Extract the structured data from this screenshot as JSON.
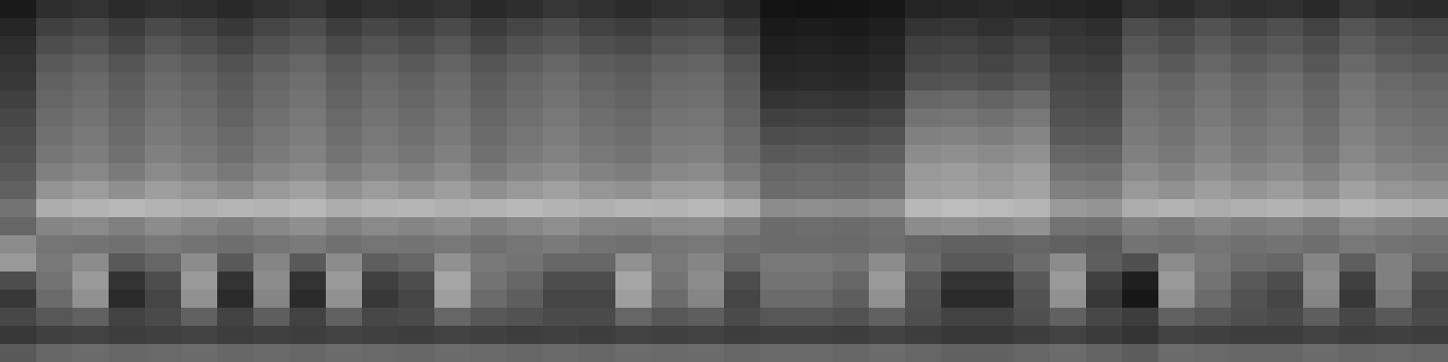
{
  "chart_data": {
    "type": "heatmap",
    "tick_labels": false,
    "clim": [
      0,
      100
    ],
    "cells": [
      [
        10,
        18,
        20,
        17,
        19,
        18,
        16,
        19,
        21,
        17,
        19,
        18,
        20,
        16,
        18,
        21,
        19,
        17,
        19,
        20,
        16,
        8,
        7,
        8,
        9,
        14,
        15,
        16,
        15,
        14,
        13,
        19,
        17,
        20,
        18,
        19,
        16,
        21,
        18,
        17
      ],
      [
        15,
        25,
        28,
        23,
        29,
        26,
        22,
        27,
        30,
        24,
        28,
        25,
        29,
        23,
        27,
        30,
        26,
        24,
        28,
        29,
        22,
        10,
        11,
        10,
        12,
        20,
        21,
        19,
        22,
        20,
        18,
        30,
        27,
        32,
        28,
        31,
        26,
        33,
        29,
        27
      ],
      [
        18,
        30,
        33,
        28,
        34,
        31,
        27,
        32,
        35,
        29,
        33,
        30,
        34,
        28,
        32,
        35,
        31,
        29,
        33,
        34,
        27,
        12,
        13,
        12,
        14,
        25,
        26,
        24,
        27,
        22,
        21,
        34,
        31,
        36,
        32,
        35,
        30,
        37,
        33,
        31
      ],
      [
        20,
        35,
        38,
        33,
        39,
        36,
        32,
        37,
        40,
        34,
        38,
        35,
        39,
        33,
        37,
        40,
        36,
        34,
        38,
        39,
        32,
        14,
        15,
        14,
        16,
        28,
        29,
        27,
        30,
        25,
        24,
        38,
        35,
        40,
        36,
        39,
        34,
        41,
        37,
        35
      ],
      [
        22,
        38,
        41,
        36,
        42,
        39,
        35,
        40,
        43,
        37,
        41,
        38,
        42,
        36,
        40,
        43,
        39,
        37,
        41,
        42,
        35,
        16,
        17,
        16,
        18,
        32,
        33,
        31,
        34,
        28,
        27,
        42,
        39,
        44,
        40,
        43,
        38,
        45,
        41,
        39
      ],
      [
        25,
        40,
        43,
        38,
        44,
        41,
        37,
        42,
        45,
        39,
        43,
        40,
        44,
        38,
        42,
        45,
        41,
        39,
        43,
        44,
        37,
        20,
        21,
        20,
        22,
        40,
        41,
        39,
        42,
        30,
        29,
        44,
        41,
        46,
        42,
        45,
        40,
        47,
        43,
        41
      ],
      [
        28,
        42,
        45,
        40,
        46,
        43,
        39,
        44,
        47,
        41,
        45,
        42,
        46,
        40,
        44,
        47,
        43,
        41,
        45,
        46,
        39,
        25,
        26,
        25,
        27,
        45,
        46,
        44,
        47,
        32,
        31,
        46,
        43,
        48,
        44,
        47,
        42,
        49,
        45,
        43
      ],
      [
        30,
        44,
        47,
        42,
        48,
        45,
        41,
        46,
        49,
        43,
        47,
        44,
        48,
        42,
        46,
        49,
        45,
        43,
        47,
        48,
        41,
        30,
        31,
        30,
        32,
        50,
        51,
        49,
        52,
        35,
        34,
        48,
        45,
        50,
        46,
        49,
        44,
        51,
        47,
        45
      ],
      [
        32,
        46,
        49,
        44,
        50,
        47,
        43,
        48,
        51,
        45,
        49,
        46,
        50,
        44,
        48,
        51,
        47,
        45,
        49,
        50,
        43,
        35,
        36,
        35,
        37,
        55,
        56,
        54,
        57,
        40,
        39,
        50,
        47,
        52,
        48,
        51,
        46,
        53,
        49,
        47
      ],
      [
        35,
        50,
        53,
        48,
        54,
        51,
        47,
        52,
        55,
        49,
        53,
        50,
        54,
        48,
        52,
        55,
        51,
        49,
        53,
        54,
        47,
        40,
        41,
        40,
        42,
        60,
        61,
        59,
        62,
        45,
        44,
        54,
        51,
        56,
        52,
        55,
        50,
        57,
        53,
        51
      ],
      [
        38,
        58,
        61,
        56,
        62,
        59,
        55,
        60,
        63,
        57,
        61,
        58,
        62,
        56,
        60,
        63,
        59,
        57,
        61,
        62,
        55,
        42,
        43,
        42,
        44,
        62,
        63,
        61,
        64,
        50,
        49,
        60,
        57,
        62,
        58,
        61,
        56,
        63,
        59,
        57
      ],
      [
        45,
        68,
        70,
        72,
        70,
        69,
        71,
        70,
        72,
        68,
        70,
        71,
        69,
        70,
        72,
        70,
        69,
        71,
        70,
        72,
        68,
        55,
        56,
        55,
        57,
        72,
        74,
        73,
        71,
        60,
        58,
        68,
        70,
        67,
        69,
        70,
        68,
        71,
        69,
        67
      ],
      [
        40,
        52,
        54,
        50,
        55,
        52,
        49,
        53,
        56,
        51,
        54,
        52,
        55,
        50,
        53,
        56,
        52,
        51,
        54,
        55,
        49,
        42,
        43,
        42,
        44,
        55,
        56,
        54,
        57,
        45,
        44,
        50,
        48,
        52,
        49,
        51,
        47,
        53,
        50,
        48
      ],
      [
        55,
        46,
        45,
        44,
        47,
        45,
        43,
        46,
        48,
        44,
        46,
        45,
        47,
        44,
        46,
        48,
        45,
        44,
        46,
        47,
        43,
        42,
        42,
        41,
        43,
        40,
        38,
        38,
        40,
        38,
        36,
        45,
        44,
        46,
        44,
        45,
        43,
        47,
        45,
        44
      ],
      [
        60,
        47,
        55,
        35,
        40,
        55,
        35,
        52,
        35,
        55,
        37,
        40,
        57,
        47,
        45,
        40,
        40,
        57,
        47,
        52,
        40,
        47,
        47,
        45,
        55,
        42,
        35,
        35,
        42,
        55,
        37,
        31,
        55,
        47,
        42,
        40,
        52,
        37,
        50,
        40
      ],
      [
        30,
        45,
        60,
        20,
        30,
        60,
        20,
        55,
        20,
        60,
        25,
        30,
        65,
        45,
        40,
        30,
        30,
        65,
        45,
        55,
        30,
        45,
        45,
        40,
        60,
        35,
        20,
        20,
        35,
        60,
        25,
        12,
        60,
        45,
        35,
        30,
        55,
        25,
        50,
        30
      ],
      [
        22,
        42,
        57,
        17,
        27,
        57,
        17,
        52,
        17,
        57,
        22,
        27,
        62,
        42,
        37,
        27,
        27,
        62,
        42,
        52,
        27,
        42,
        42,
        37,
        57,
        32,
        17,
        17,
        32,
        57,
        22,
        9,
        57,
        42,
        32,
        27,
        52,
        22,
        47,
        27
      ],
      [
        28,
        34,
        38,
        26,
        29,
        38,
        26,
        37,
        26,
        38,
        28,
        29,
        40,
        34,
        32,
        29,
        29,
        40,
        34,
        37,
        29,
        34,
        34,
        32,
        38,
        31,
        26,
        26,
        31,
        38,
        28,
        24,
        38,
        34,
        31,
        29,
        37,
        28,
        35,
        29
      ],
      [
        22,
        25,
        26,
        24,
        25,
        26,
        24,
        25,
        24,
        26,
        25,
        24,
        26,
        25,
        24,
        25,
        24,
        26,
        25,
        26,
        24,
        25,
        25,
        24,
        26,
        24,
        22,
        22,
        24,
        26,
        23,
        20,
        26,
        25,
        24,
        24,
        26,
        24,
        25,
        24
      ],
      [
        35,
        40,
        42,
        40,
        41,
        42,
        40,
        41,
        40,
        42,
        41,
        40,
        42,
        41,
        40,
        41,
        40,
        42,
        41,
        42,
        40,
        41,
        41,
        40,
        42,
        40,
        38,
        38,
        40,
        42,
        39,
        36,
        42,
        41,
        40,
        40,
        42,
        40,
        41,
        40
      ]
    ]
  }
}
